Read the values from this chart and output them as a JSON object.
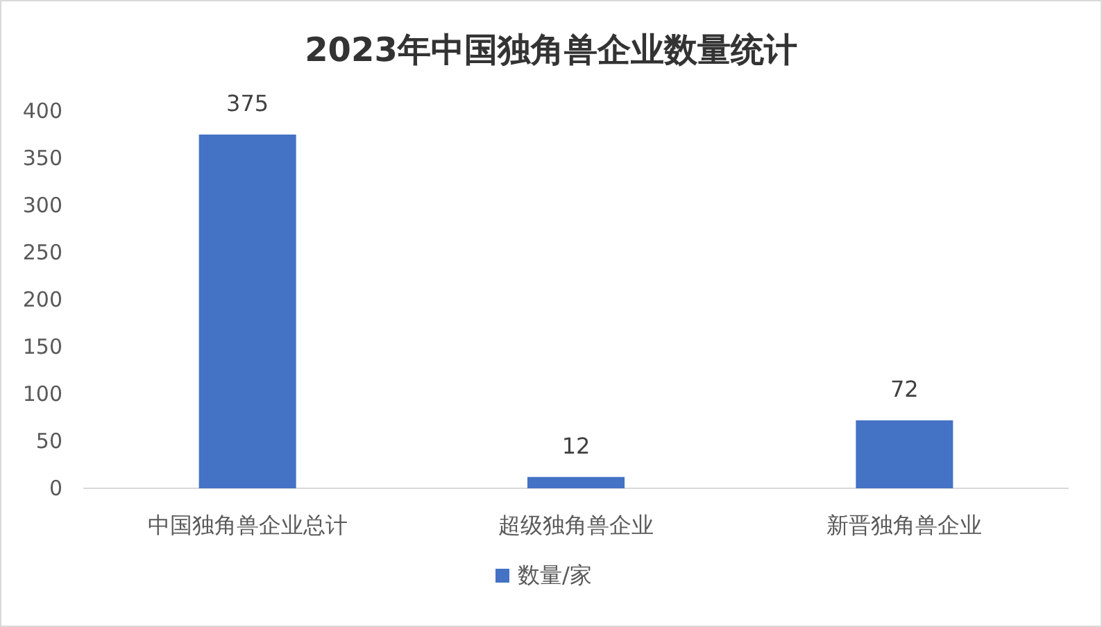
{
  "chart_data": {
    "type": "bar",
    "title": "2023年中国独角兽企业数量统计",
    "categories": [
      "中国独角兽企业总计",
      "超级独角兽企业",
      "新晋独角兽企业"
    ],
    "series": [
      {
        "name": "数量/家",
        "color": "#4472c4",
        "values": [
          375,
          12,
          72
        ]
      }
    ],
    "ylim": [
      0,
      400
    ],
    "yticks": [
      0,
      50,
      100,
      150,
      200,
      250,
      300,
      350,
      400
    ],
    "data_labels": true,
    "grid": false,
    "legend": "bottom"
  }
}
